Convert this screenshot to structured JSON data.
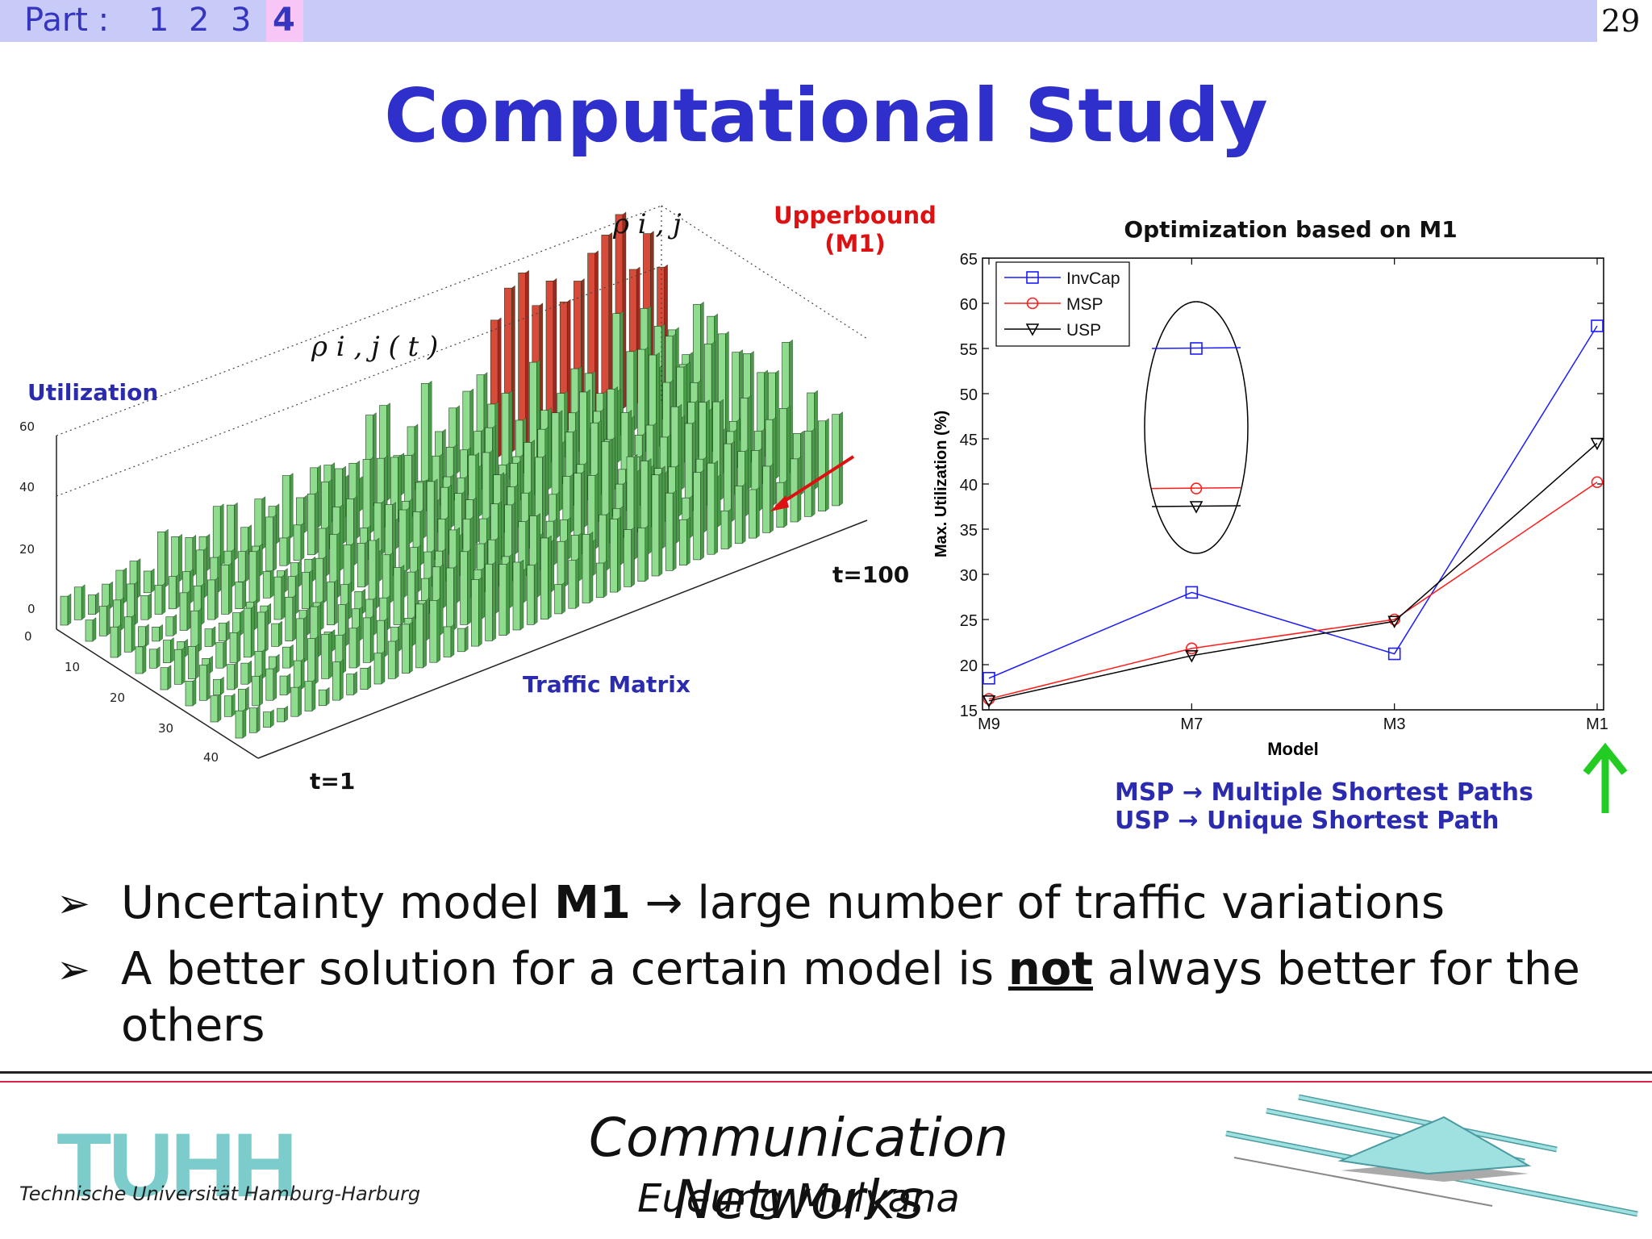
{
  "header": {
    "part_label": "Part :",
    "parts": [
      "1",
      "2",
      "3",
      "4"
    ],
    "active_part": "4",
    "page_number": "29"
  },
  "title": "Computational Study",
  "left_figure": {
    "rho_ij": "ρ i , j",
    "rho_ij_t": "ρ i , j ( t )",
    "upperbound_line1": "Upperbound",
    "upperbound_line2": "(M1)",
    "utilization_label": "Utilization",
    "traffic_matrix_label": "Traffic Matrix",
    "t1_label": "t=1",
    "t100_label": "t=100",
    "z_ticks": [
      "60",
      "40",
      "20",
      "0"
    ],
    "depth_ticks": [
      "0",
      "10",
      "20",
      "30",
      "40"
    ]
  },
  "chart_data": {
    "type": "line",
    "title": "Optimization based on M1",
    "xlabel": "Model",
    "ylabel": "Max. Utilization (%)",
    "categories": [
      "M9",
      "M7",
      "M3",
      "M1"
    ],
    "ylim": [
      15,
      65
    ],
    "yticks": [
      "15",
      "20",
      "25",
      "30",
      "35",
      "40",
      "45",
      "50",
      "55",
      "60",
      "65"
    ],
    "legend_position": "top-left",
    "series": [
      {
        "name": "InvCap",
        "color": "#1c1cff",
        "marker": "square",
        "values": [
          18.5,
          28,
          21.2,
          57.5
        ]
      },
      {
        "name": "MSP",
        "color": "#ff1c1c",
        "marker": "circle",
        "values": [
          16.2,
          21.8,
          25,
          40.2
        ]
      },
      {
        "name": "USP",
        "color": "#000000",
        "marker": "triangle",
        "values": [
          16,
          21,
          24.8,
          44.5
        ]
      }
    ],
    "inset_values": {
      "InvCap": 55,
      "MSP": 39.5,
      "USP": 37.5
    }
  },
  "legend_note": {
    "msp": "MSP → Multiple Shortest Paths",
    "usp": "USP → Unique Shortest Path"
  },
  "bullets": {
    "b1_pre": "Uncertainty model ",
    "b1_bold": "M1",
    "b1_post": " → large number of traffic variations",
    "b2_pre": "A better solution for a certain model is ",
    "b2_underline": "not",
    "b2_post": " always better for the others",
    "marker": "➢"
  },
  "footer": {
    "logo": "TUHH",
    "university": "Technische Universität Hamburg-Harburg",
    "course": "Communication Networks",
    "author": "Eueung Mulyana"
  },
  "colors": {
    "header_bar": "#c8cbf8",
    "title": "#2f2fcc",
    "bars_green": "#8fdc8f",
    "bars_red": "#d84a3a",
    "arrow_green": "#22cc22",
    "logo": "#7ccccc"
  }
}
